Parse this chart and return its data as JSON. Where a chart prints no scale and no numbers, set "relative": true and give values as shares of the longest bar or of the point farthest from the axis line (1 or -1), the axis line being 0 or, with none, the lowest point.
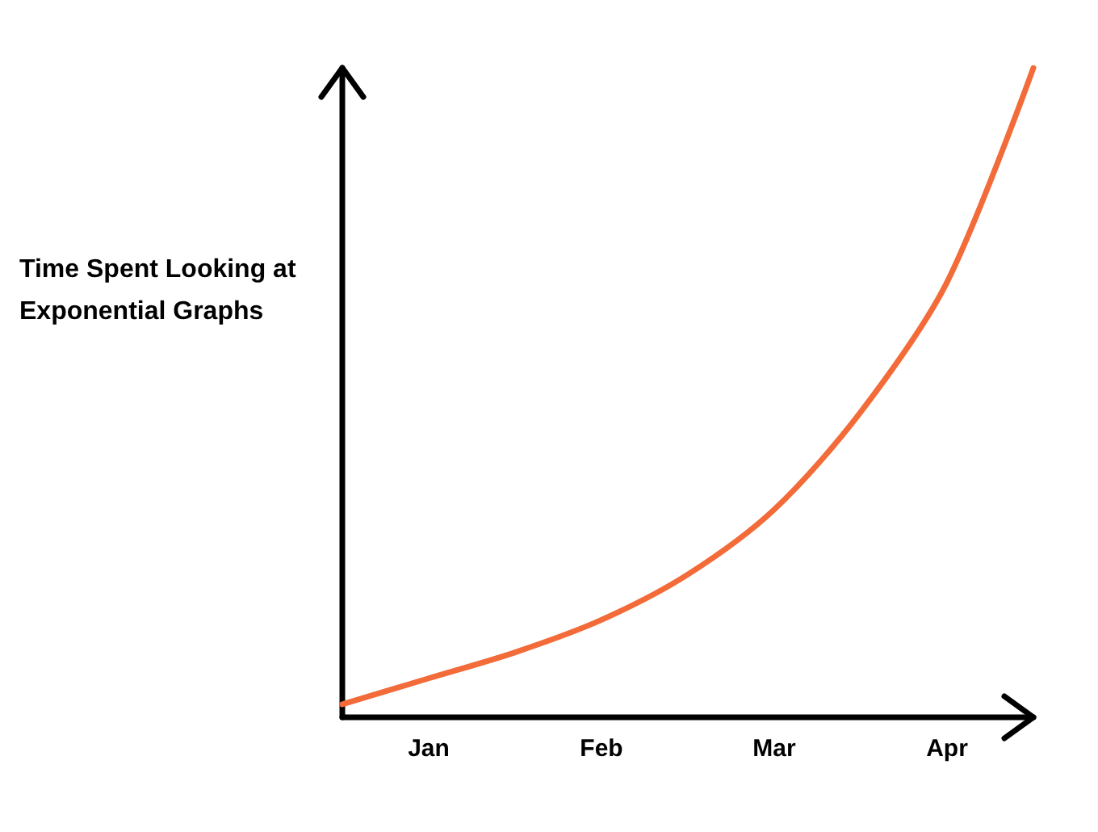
{
  "chart_data": {
    "type": "line",
    "relative": true,
    "ylabel": "Time Spent Looking at Exponential Graphs",
    "categories": [
      null,
      "Jan",
      null,
      "Feb",
      null,
      "Mar",
      null,
      "Apr",
      null
    ],
    "series": [
      {
        "color": "#f26b38",
        "values": [
          0.02,
          0.06,
          0.1,
          0.15,
          0.22,
          0.32,
          0.47,
          0.67,
          1.0
        ]
      }
    ],
    "marker": "none",
    "grid": false
  }
}
